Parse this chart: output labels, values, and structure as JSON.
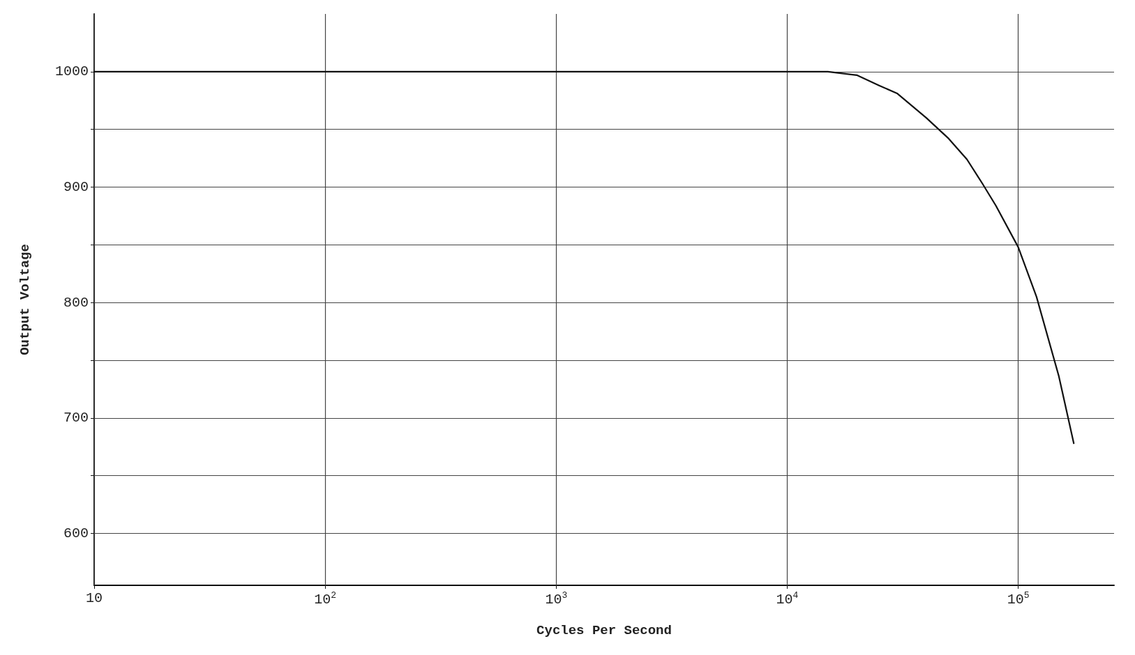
{
  "chart_data": {
    "type": "line",
    "xlabel": "Cycles Per Second",
    "ylabel": "Output Voltage",
    "x": [
      10,
      100,
      1000,
      10000,
      15000,
      20000,
      25000,
      30000,
      40000,
      50000,
      60000,
      70000,
      80000,
      100000,
      120000,
      150000,
      174000
    ],
    "series": [
      {
        "color": "#111111",
        "values": [
          1000,
          1000,
          1000,
          1000,
          1000,
          997,
          988,
          981,
          960,
          942,
          924,
          903,
          884,
          848,
          805,
          736,
          678
        ]
      }
    ],
    "log": "x",
    "xlim": [
      10,
      260000
    ],
    "xticks": [
      10,
      {
        "value": 100,
        "label": "10$^{2}$"
      },
      {
        "value": 1000,
        "label": "10$^{3}$"
      },
      {
        "value": 10000,
        "label": "10$^{4}$"
      },
      {
        "value": 100000,
        "label": "10$^{5}$"
      }
    ],
    "ylim": [
      555,
      1050
    ],
    "yticks": [
      600,
      {
        "value": 650,
        "label": null
      },
      700,
      {
        "value": 750,
        "label": null
      },
      800,
      {
        "value": 850,
        "label": null
      },
      900,
      {
        "value": 950,
        "label": null
      },
      1000
    ],
    "grid": true,
    "marker": "none",
    "line_style": "solid"
  }
}
